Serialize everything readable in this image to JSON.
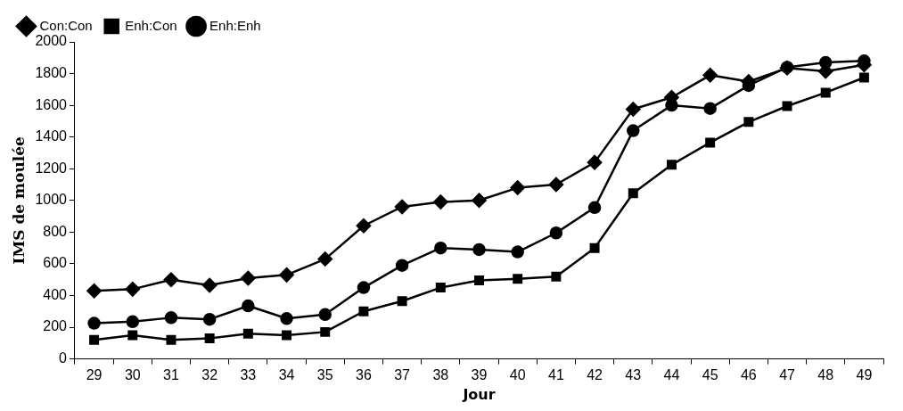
{
  "chart_data": {
    "type": "line",
    "xlabel": "Jour",
    "ylabel": "IMS de moulée",
    "categories": [
      "29",
      "30",
      "31",
      "32",
      "33",
      "34",
      "35",
      "36",
      "37",
      "38",
      "39",
      "40",
      "41",
      "42",
      "43",
      "44",
      "45",
      "46",
      "47",
      "48",
      "49"
    ],
    "series": [
      {
        "name": "Con:Con",
        "color": "#000000",
        "marker": "diamond",
        "values": [
          430,
          440,
          500,
          465,
          510,
          530,
          630,
          840,
          960,
          990,
          1000,
          1080,
          1100,
          1240,
          1575,
          1650,
          1790,
          1750,
          1835,
          1815,
          1855
        ]
      },
      {
        "name": "Enh:Con",
        "color": "#000000",
        "marker": "square",
        "values": [
          120,
          150,
          120,
          130,
          160,
          150,
          170,
          300,
          365,
          450,
          495,
          505,
          520,
          700,
          1045,
          1225,
          1365,
          1495,
          1595,
          1680,
          1775
        ]
      },
      {
        "name": "Enh:Enh",
        "color": "#000000",
        "marker": "circle",
        "values": [
          225,
          235,
          260,
          250,
          335,
          255,
          280,
          450,
          590,
          700,
          690,
          675,
          795,
          955,
          1440,
          1600,
          1580,
          1725,
          1840,
          1870,
          1880
        ]
      }
    ],
    "ylim": [
      0,
      2000
    ],
    "yticks": [
      0,
      200,
      400,
      600,
      800,
      1000,
      1200,
      1400,
      1600,
      1800,
      2000
    ],
    "grid": false,
    "legend": "top left",
    "line_style": "solid"
  }
}
